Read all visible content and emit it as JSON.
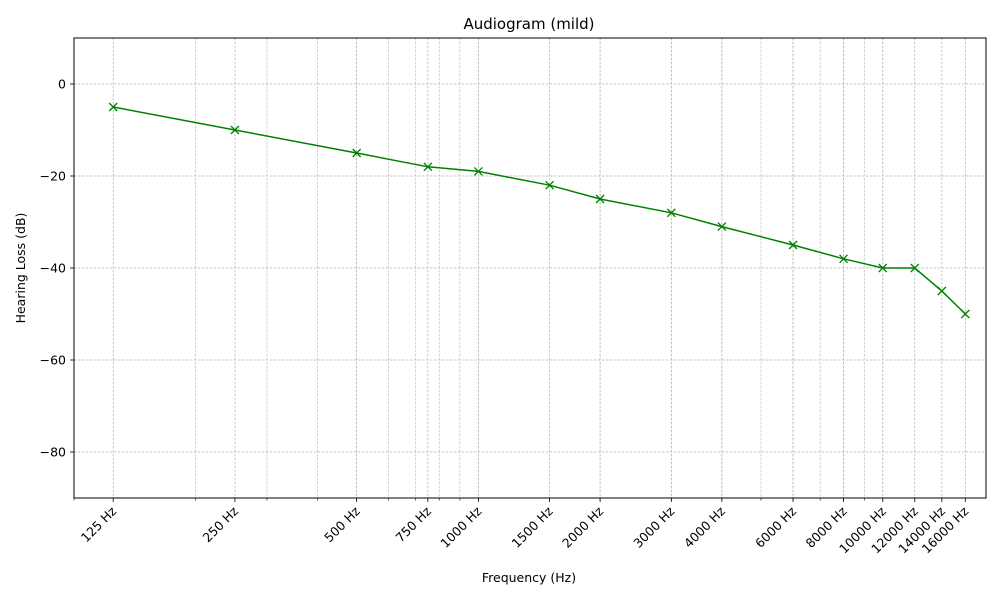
{
  "chart_data": {
    "type": "line",
    "title": "Audiogram (mild)",
    "xlabel": "Frequency (Hz)",
    "ylabel": "Hearing Loss (dB)",
    "x_scale": "log",
    "xlim": [
      100,
      18000
    ],
    "ylim": [
      -90,
      10
    ],
    "grid": true,
    "x": [
      125,
      250,
      500,
      750,
      1000,
      1500,
      2000,
      3000,
      4000,
      6000,
      8000,
      10000,
      12000,
      14000,
      16000
    ],
    "x_tick_labels": [
      "125 Hz",
      "250 Hz",
      "500 Hz",
      "750 Hz",
      "1000 Hz",
      "1500 Hz",
      "2000 Hz",
      "3000 Hz",
      "4000 Hz",
      "6000 Hz",
      "8000 Hz",
      "10000 Hz",
      "12000 Hz",
      "14000 Hz",
      "16000 Hz"
    ],
    "y_ticks": [
      0,
      -20,
      -40,
      -60,
      -80
    ],
    "y_tick_labels": [
      "0",
      "−20",
      "−40",
      "−60",
      "−80"
    ],
    "series": [
      {
        "values": [
          -5,
          -10,
          -15,
          -18,
          -19,
          -22,
          -25,
          -28,
          -31,
          -35,
          -38,
          -40,
          -40,
          -45,
          -50
        ],
        "color": "#008000",
        "marker": "x"
      }
    ]
  }
}
